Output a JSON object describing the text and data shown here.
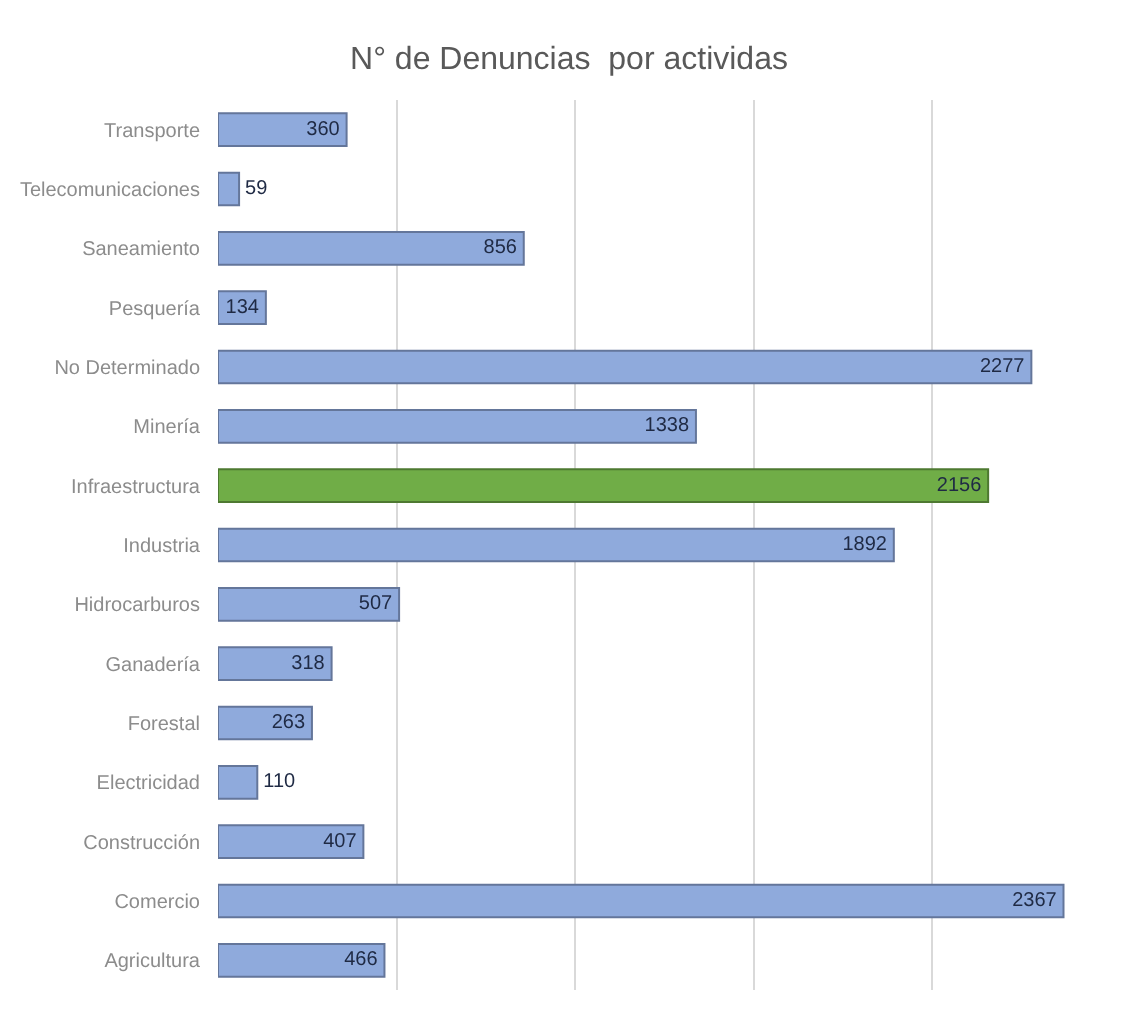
{
  "chart_data": {
    "type": "bar",
    "orientation": "horizontal",
    "title": "N° de Denuncias  por actividas",
    "categories": [
      "Transporte",
      "Telecomunicaciones",
      "Saneamiento",
      "Pesquería",
      "No Determinado",
      "Minería",
      "Infraestructura",
      "Industria",
      "Hidrocarburos",
      "Ganadería",
      "Forestal",
      "Electricidad",
      "Construcción",
      "Comercio",
      "Agricultura"
    ],
    "values": [
      360,
      59,
      856,
      134,
      2277,
      1338,
      2156,
      1892,
      507,
      318,
      263,
      110,
      407,
      2367,
      466
    ],
    "colors": [
      "#8faadc",
      "#8faadc",
      "#8faadc",
      "#8faadc",
      "#8faadc",
      "#8faadc",
      "#70ad47",
      "#8faadc",
      "#8faadc",
      "#8faadc",
      "#8faadc",
      "#8faadc",
      "#8faadc",
      "#8faadc",
      "#8faadc"
    ],
    "grid": "x",
    "tick_labels": "y",
    "data_labels": true
  }
}
